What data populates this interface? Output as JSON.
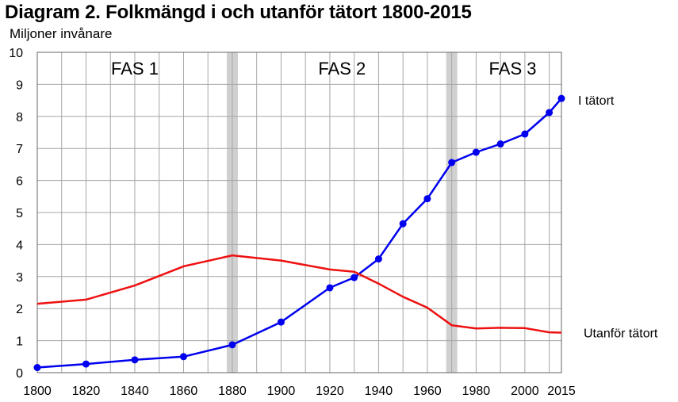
{
  "chart_data": {
    "type": "line",
    "title": "Diagram 2. Folkmängd i och utanför tätort 1800-2015",
    "ylabel": "Miljoner invånare",
    "xlabel": "",
    "xlim": [
      1800,
      2015
    ],
    "ylim": [
      0,
      10
    ],
    "x_ticks": [
      "1800",
      "1820",
      "1840",
      "1860",
      "1880",
      "1900",
      "1920",
      "1940",
      "1960",
      "1980",
      "2000",
      "2015"
    ],
    "y_ticks": [
      "0",
      "1",
      "2",
      "3",
      "4",
      "5",
      "6",
      "7",
      "8",
      "9",
      "10"
    ],
    "grid": true,
    "phases": [
      {
        "label": "FAS 1",
        "x": 1840
      },
      {
        "label": "FAS 2",
        "x": 1925
      },
      {
        "label": "FAS 3",
        "x": 1995
      }
    ],
    "phase_boundaries": [
      1880,
      1970
    ],
    "series": [
      {
        "name": "I tätort",
        "color": "#0000ee",
        "markers": true,
        "x": [
          1800,
          1820,
          1840,
          1860,
          1880,
          1900,
          1920,
          1930,
          1940,
          1950,
          1960,
          1970,
          1980,
          1990,
          2000,
          2010,
          2015
        ],
        "values": [
          0.16,
          0.27,
          0.4,
          0.5,
          0.87,
          1.58,
          2.65,
          2.97,
          3.55,
          4.65,
          5.43,
          6.56,
          6.88,
          7.14,
          7.45,
          8.12,
          8.56
        ]
      },
      {
        "name": "Utanför tätort",
        "color": "#ee1111",
        "markers": false,
        "x": [
          1800,
          1820,
          1840,
          1860,
          1880,
          1900,
          1920,
          1930,
          1940,
          1950,
          1960,
          1970,
          1980,
          1990,
          2000,
          2010,
          2015
        ],
        "values": [
          2.15,
          2.28,
          2.72,
          3.32,
          3.66,
          3.5,
          3.22,
          3.15,
          2.78,
          2.37,
          2.03,
          1.48,
          1.38,
          1.4,
          1.39,
          1.26,
          1.25
        ]
      }
    ]
  }
}
